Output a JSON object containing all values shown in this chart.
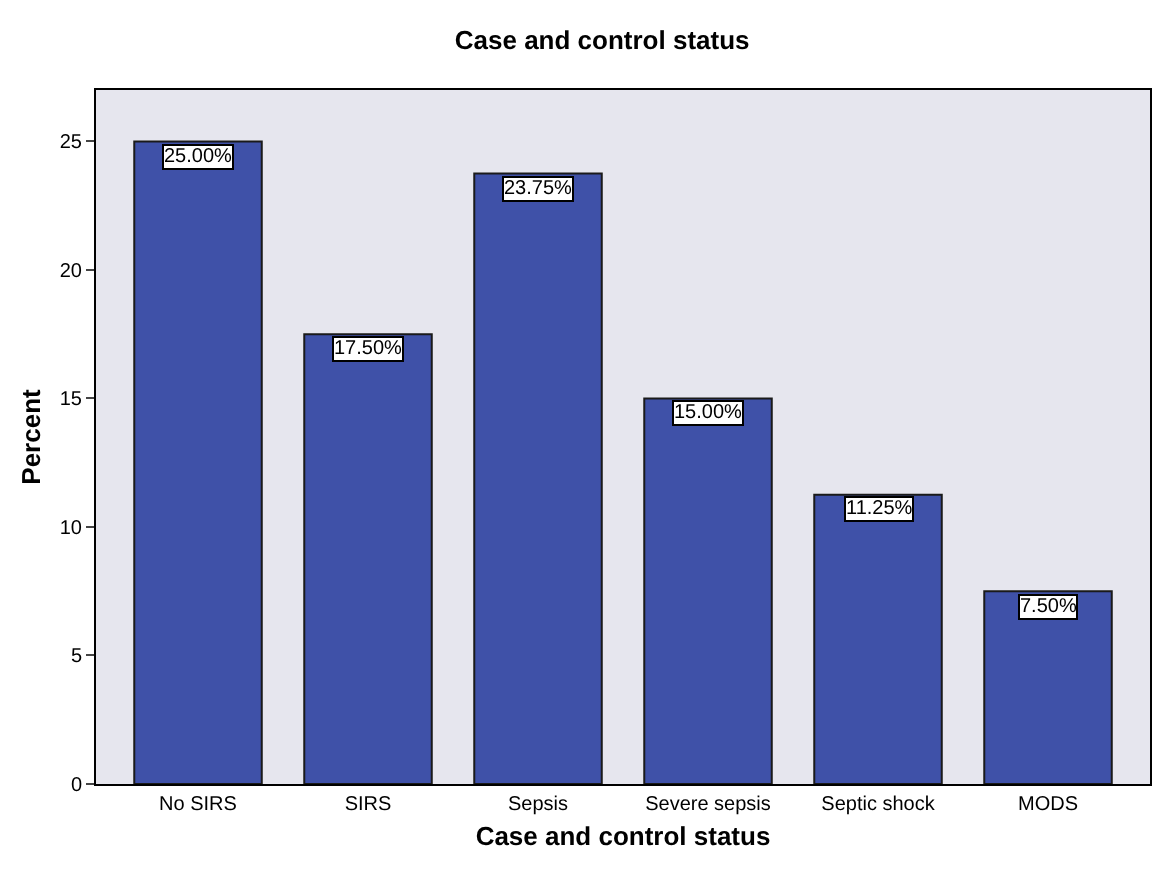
{
  "chart_data": {
    "type": "bar",
    "title": "Case and control status",
    "xlabel": "Case and control status",
    "ylabel": "Percent",
    "categories": [
      "No SIRS",
      "SIRS",
      "Sepsis",
      "Severe sepsis",
      "Septic shock",
      "MODS"
    ],
    "values": [
      25,
      17.5,
      23.75,
      15,
      11.25,
      7.5
    ],
    "value_labels": [
      "25.00%",
      "17.50%",
      "23.75%",
      "15.00%",
      "11.25%",
      "7.50%"
    ],
    "color": "#3f51a8",
    "ylim": [
      0,
      27
    ],
    "yticks": [
      0,
      5,
      10,
      15,
      20,
      25
    ],
    "grid": false,
    "legend": false
  }
}
